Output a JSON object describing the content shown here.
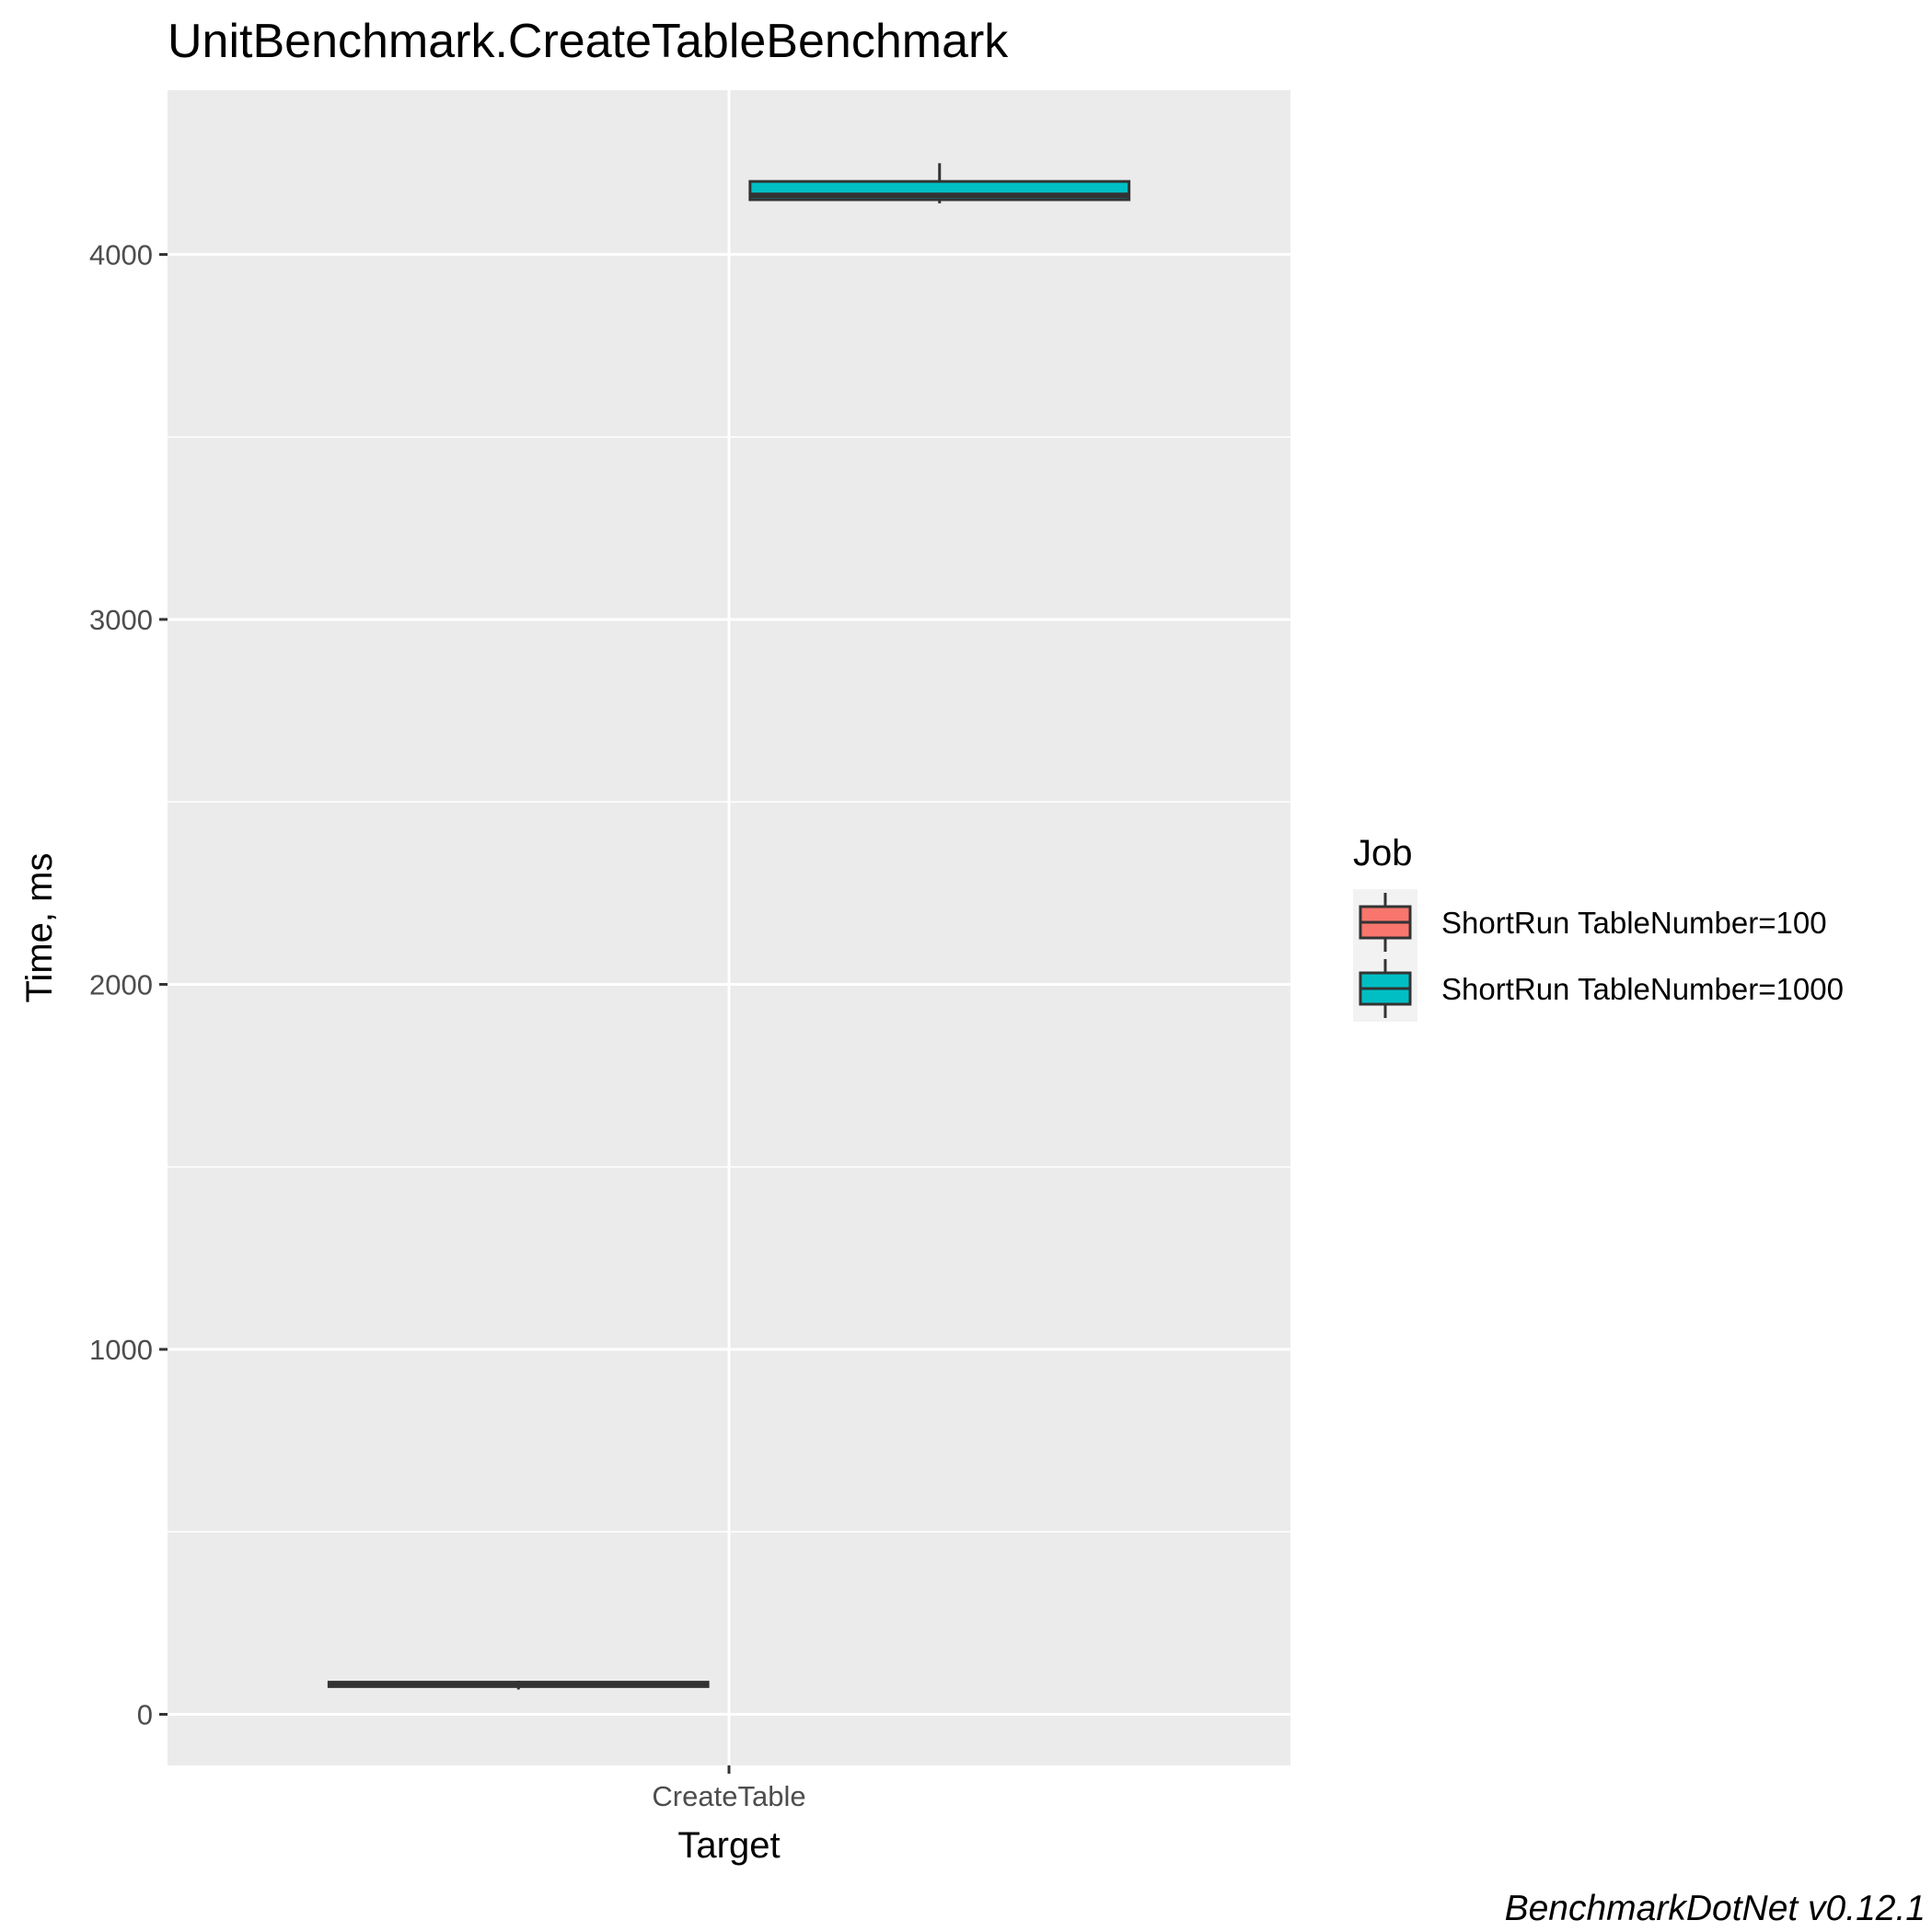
{
  "chart_data": {
    "type": "boxplot",
    "title": "UnitBenchmark.CreateTableBenchmark",
    "xlabel": "Target",
    "ylabel": "Time, ms",
    "categories": [
      "CreateTable"
    ],
    "ylim": [
      -140,
      4450
    ],
    "yticks": [
      0,
      1000,
      2000,
      3000,
      4000
    ],
    "grid": true,
    "legend": {
      "title": "Job",
      "placement": "right"
    },
    "series": [
      {
        "name": "ShortRun TableNumber=100",
        "color": "#F8766D",
        "boxes": [
          {
            "category": "CreateTable",
            "min": 68,
            "q1": 76,
            "median": 82,
            "q3": 88,
            "max": 92
          }
        ]
      },
      {
        "name": "ShortRun TableNumber=1000",
        "color": "#00BFC4",
        "boxes": [
          {
            "category": "CreateTable",
            "min": 4140,
            "q1": 4150,
            "median": 4162,
            "q3": 4200,
            "max": 4250
          }
        ]
      }
    ],
    "caption": "BenchmarkDotNet v0.12.1"
  }
}
